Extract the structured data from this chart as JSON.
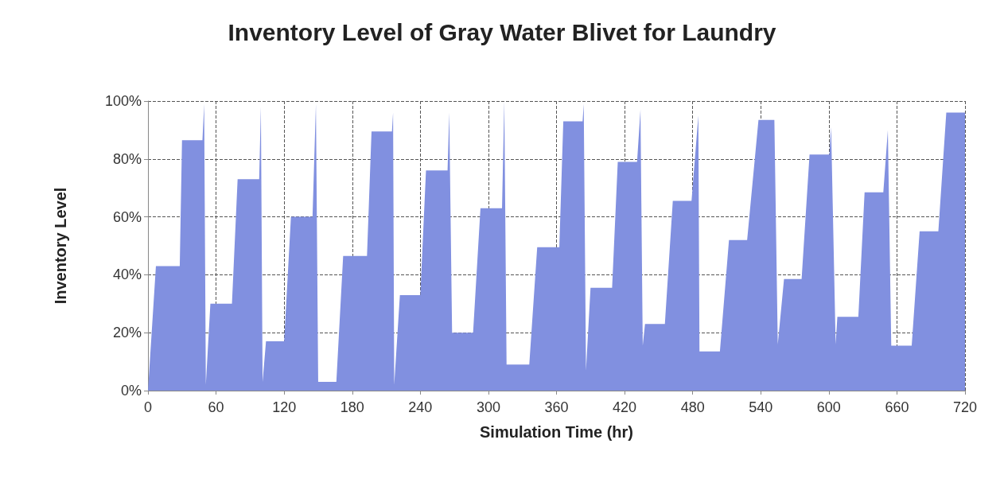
{
  "chart_data": {
    "type": "area",
    "title": "Inventory Level of Gray Water Blivet for Laundry",
    "xlabel": "Simulation Time (hr)",
    "ylabel": "Inventory Level",
    "x": [
      0,
      7,
      28,
      30,
      48,
      49.5,
      51,
      55,
      74,
      79,
      98,
      99.5,
      101,
      104,
      120,
      126,
      145,
      148,
      150,
      166,
      172,
      193,
      197,
      215,
      216,
      217,
      222,
      240,
      245,
      264,
      265.5,
      268,
      286.5,
      293,
      312,
      314,
      316,
      336,
      343,
      362.5,
      366,
      383,
      384,
      386,
      390,
      409,
      414,
      431,
      434,
      436,
      438,
      455.5,
      462.5,
      479,
      485,
      486,
      504,
      512,
      528,
      538,
      552,
      555,
      560.5,
      576,
      583,
      600.5,
      602,
      606,
      607.5,
      626,
      631.5,
      648,
      652,
      655,
      673,
      680,
      696.5,
      703.5,
      720
    ],
    "series": [
      {
        "color": "#8190e0",
        "values": [
          0,
          43,
          43,
          86.5,
          86.5,
          99,
          2,
          30,
          30,
          73,
          73,
          98,
          3,
          17,
          17,
          60,
          60,
          99,
          3,
          3,
          46.5,
          46.5,
          89.5,
          89.5,
          96,
          2,
          33,
          33,
          76,
          76,
          96,
          20,
          20,
          63,
          63,
          100,
          9,
          9,
          49.5,
          49.5,
          93,
          93,
          99,
          7,
          35.5,
          35.5,
          79,
          79,
          97,
          15.5,
          23,
          23,
          65.5,
          65.5,
          95,
          13.5,
          13.5,
          52,
          52,
          93.5,
          93.5,
          16,
          38.5,
          38.5,
          81.5,
          81.5,
          91,
          16,
          25.5,
          25.5,
          68.5,
          68.5,
          90,
          15.5,
          15.5,
          55,
          55,
          96,
          96
        ]
      }
    ],
    "xlim": [
      0,
      720
    ],
    "xticks": [
      0,
      60,
      120,
      180,
      240,
      300,
      360,
      420,
      480,
      540,
      600,
      660,
      720
    ],
    "ylim": [
      0,
      100
    ],
    "yticks": [
      {
        "value": 0,
        "label": "0%"
      },
      {
        "value": 20,
        "label": "20%"
      },
      {
        "value": 40,
        "label": "40%"
      },
      {
        "value": 60,
        "label": "60%"
      },
      {
        "value": 80,
        "label": "80%"
      },
      {
        "value": 100,
        "label": "100%"
      }
    ],
    "grid": true
  }
}
